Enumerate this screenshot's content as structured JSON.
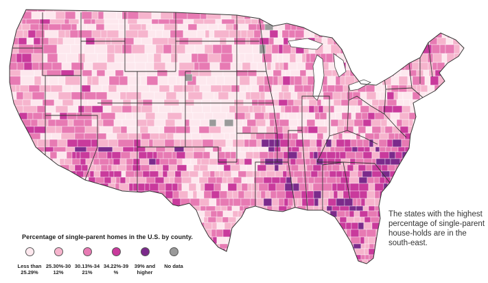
{
  "legend": {
    "title": "Percentage of single-parent homes in the U.S. by county.",
    "items": [
      {
        "label": "Less than\n25.29%",
        "color": "#fde8ee"
      },
      {
        "label": "25.30%-30\n12%",
        "color": "#f6b4cd"
      },
      {
        "label": "30.13%-34\n21%",
        "color": "#e77ab3"
      },
      {
        "label": "34.22%-39\n%",
        "color": "#c93a9c"
      },
      {
        "label": "39% and\nhigher",
        "color": "#7b2a8b"
      },
      {
        "label": "No data",
        "color": "#9a9a9a"
      }
    ]
  },
  "note": "The states with the highest percentage of single-parent house-holds are in the south-east."
}
